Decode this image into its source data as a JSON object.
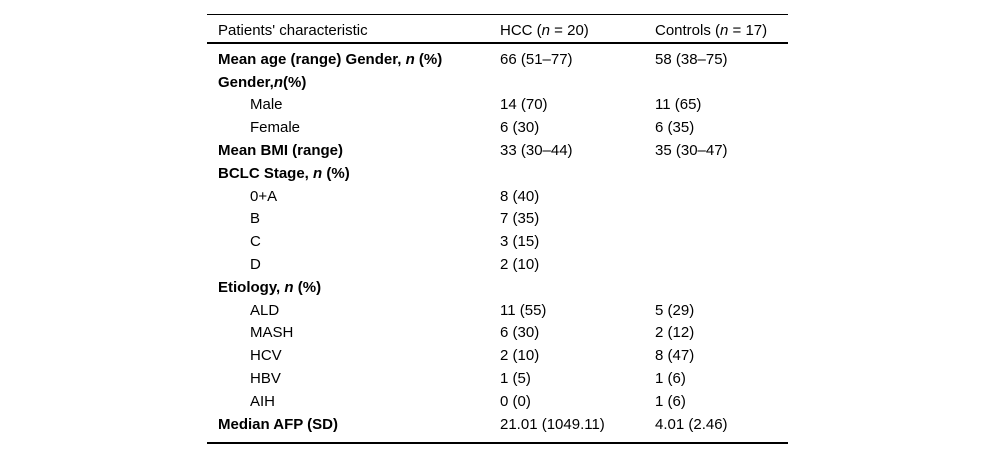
{
  "page": {
    "background_color": "#ffffff",
    "text_color": "#000000",
    "rule_color": "#000000"
  },
  "table": {
    "header": [
      {
        "pre": "Patients' characteristic",
        "it": "",
        "post": ""
      },
      {
        "pre": "HCC (",
        "it": "n",
        "post": " = 20)"
      },
      {
        "pre": "Controls (",
        "it": "n",
        "post": " = 17)"
      }
    ],
    "rows": [
      {
        "pre": "Mean age (range) Gender, ",
        "it": "n",
        "post": " (%)",
        "bold": true,
        "indent": false,
        "hcc": "66 (51–77)",
        "controls": "58 (38–75)"
      },
      {
        "pre": "Gender,",
        "it": "n",
        "post": "(%)",
        "bold": true,
        "indent": false,
        "hcc": "",
        "controls": ""
      },
      {
        "pre": "Male",
        "it": "",
        "post": "",
        "bold": false,
        "indent": true,
        "hcc": "14 (70)",
        "controls": "11 (65)"
      },
      {
        "pre": "Female",
        "it": "",
        "post": "",
        "bold": false,
        "indent": true,
        "hcc": "6 (30)",
        "controls": "6 (35)"
      },
      {
        "pre": "Mean BMI (range)",
        "it": "",
        "post": "",
        "bold": true,
        "indent": false,
        "hcc": "33 (30–44)",
        "controls": "35 (30–47)"
      },
      {
        "pre": "BCLC Stage, ",
        "it": "n",
        "post": " (%)",
        "bold": true,
        "indent": false,
        "hcc": "",
        "controls": ""
      },
      {
        "pre": "0+A",
        "it": "",
        "post": "",
        "bold": false,
        "indent": true,
        "hcc": "8 (40)",
        "controls": ""
      },
      {
        "pre": "B",
        "it": "",
        "post": "",
        "bold": false,
        "indent": true,
        "hcc": "7 (35)",
        "controls": ""
      },
      {
        "pre": "C",
        "it": "",
        "post": "",
        "bold": false,
        "indent": true,
        "hcc": "3 (15)",
        "controls": ""
      },
      {
        "pre": "D",
        "it": "",
        "post": "",
        "bold": false,
        "indent": true,
        "hcc": "2 (10)",
        "controls": ""
      },
      {
        "pre": "Etiology, ",
        "it": "n",
        "post": " (%)",
        "bold": true,
        "indent": false,
        "hcc": "",
        "controls": ""
      },
      {
        "pre": "ALD",
        "it": "",
        "post": "",
        "bold": false,
        "indent": true,
        "hcc": "11 (55)",
        "controls": "5 (29)"
      },
      {
        "pre": "MASH",
        "it": "",
        "post": "",
        "bold": false,
        "indent": true,
        "hcc": "6 (30)",
        "controls": "2 (12)"
      },
      {
        "pre": "HCV",
        "it": "",
        "post": "",
        "bold": false,
        "indent": true,
        "hcc": "2 (10)",
        "controls": "8 (47)"
      },
      {
        "pre": "HBV",
        "it": "",
        "post": "",
        "bold": false,
        "indent": true,
        "hcc": "1 (5)",
        "controls": "1 (6)"
      },
      {
        "pre": "AIH",
        "it": "",
        "post": "",
        "bold": false,
        "indent": true,
        "hcc": "0 (0)",
        "controls": "1 (6)"
      },
      {
        "pre": "Median AFP (SD)",
        "it": "",
        "post": "",
        "bold": true,
        "indent": false,
        "hcc": "21.01 (1049.11)",
        "controls": "4.01 (2.46)"
      }
    ]
  }
}
